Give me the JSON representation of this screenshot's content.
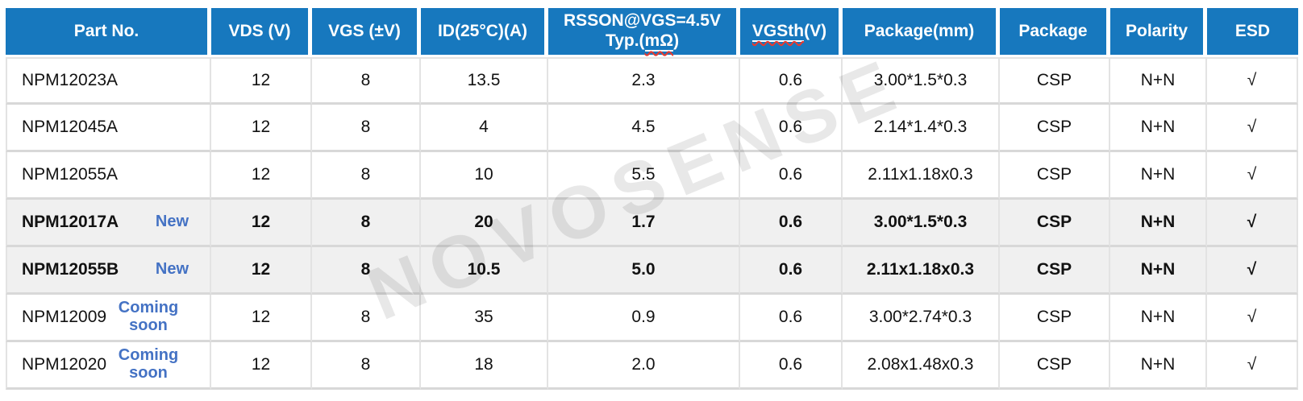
{
  "watermark": {
    "text": "NOVOSENSE"
  },
  "colors": {
    "header_bg": "#1778BE",
    "header_text": "#FFFFFF",
    "tag_blue": "#4472C4",
    "highlight_row_bg": "#F0F0F0",
    "border_horizontal": "#D8D8D8",
    "border_vertical": "#E3E3E3",
    "spellcheck_red": "#E8392E",
    "watermark_color": "rgba(0,0,0,0.09)"
  },
  "table": {
    "columns": [
      {
        "key": "part",
        "label": "Part No."
      },
      {
        "key": "vds",
        "label": "VDS (V)"
      },
      {
        "key": "vgs",
        "label": "VGS (±V)"
      },
      {
        "key": "id",
        "label": "ID(25°C)(A)"
      },
      {
        "key": "rsson",
        "label_line1": "RSSON@VGS=4.5V",
        "label_line2_prefix": "Typ.(",
        "label_line2_underlined": "mΩ",
        "label_line2_suffix": ")"
      },
      {
        "key": "vgsth",
        "label_underlined": "VGSth",
        "label_suffix": "(V)"
      },
      {
        "key": "pkg_mm",
        "label": "Package(mm)"
      },
      {
        "key": "pkg",
        "label": "Package"
      },
      {
        "key": "polarity",
        "label": "Polarity"
      },
      {
        "key": "esd",
        "label": "ESD"
      }
    ],
    "rows": [
      {
        "part": "NPM12023A",
        "tag": "",
        "vds": "12",
        "vgs": "8",
        "id": "13.5",
        "rsson": "2.3",
        "vgsth": "0.6",
        "pkg_mm": "3.00*1.5*0.3",
        "pkg": "CSP",
        "polarity": "N+N",
        "esd": "√",
        "highlight": false
      },
      {
        "part": "NPM12045A",
        "tag": "",
        "vds": "12",
        "vgs": "8",
        "id": "4",
        "rsson": "4.5",
        "vgsth": "0.6",
        "pkg_mm": "2.14*1.4*0.3",
        "pkg": "CSP",
        "polarity": "N+N",
        "esd": "√",
        "highlight": false
      },
      {
        "part": "NPM12055A",
        "tag": "",
        "vds": "12",
        "vgs": "8",
        "id": "10",
        "rsson": "5.5",
        "vgsth": "0.6",
        "pkg_mm": "2.11x1.18x0.3",
        "pkg": "CSP",
        "polarity": "N+N",
        "esd": "√",
        "highlight": false
      },
      {
        "part": "NPM12017A",
        "tag": "New",
        "vds": "12",
        "vgs": "8",
        "id": "20",
        "rsson": "1.7",
        "vgsth": "0.6",
        "pkg_mm": "3.00*1.5*0.3",
        "pkg": "CSP",
        "polarity": "N+N",
        "esd": "√",
        "highlight": true
      },
      {
        "part": "NPM12055B",
        "tag": "New",
        "vds": "12",
        "vgs": "8",
        "id": "10.5",
        "rsson": "5.0",
        "vgsth": "0.6",
        "pkg_mm": "2.11x1.18x0.3",
        "pkg": "CSP",
        "polarity": "N+N",
        "esd": "√",
        "highlight": true
      },
      {
        "part": "NPM12009",
        "tag": "Coming soon",
        "vds": "12",
        "vgs": "8",
        "id": "35",
        "rsson": "0.9",
        "vgsth": "0.6",
        "pkg_mm": "3.00*2.74*0.3",
        "pkg": "CSP",
        "polarity": "N+N",
        "esd": "√",
        "highlight": false
      },
      {
        "part": "NPM12020",
        "tag": "Coming soon",
        "vds": "12",
        "vgs": "8",
        "id": "18",
        "rsson": "2.0",
        "vgsth": "0.6",
        "pkg_mm": "2.08x1.48x0.3",
        "pkg": "CSP",
        "polarity": "N+N",
        "esd": "√",
        "highlight": false
      }
    ]
  }
}
